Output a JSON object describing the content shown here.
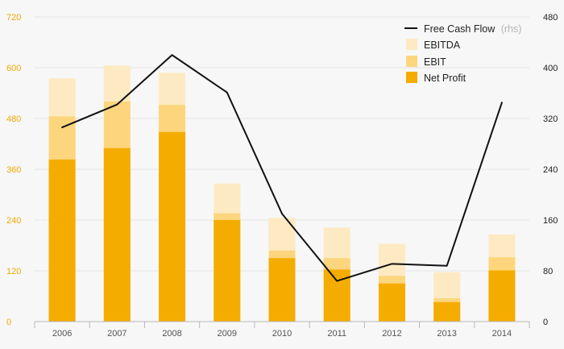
{
  "chart_data": {
    "type": "bar",
    "stacked": true,
    "categories": [
      "2006",
      "2007",
      "2008",
      "2009",
      "2010",
      "2011",
      "2012",
      "2013",
      "2014"
    ],
    "left_axis": {
      "ticks": [
        "0",
        "120",
        "240",
        "360",
        "480",
        "600",
        "720"
      ],
      "ylim": [
        0,
        720
      ],
      "tick_color": "#f0a800"
    },
    "right_axis": {
      "ticks": [
        "0",
        "80",
        "160",
        "240",
        "320",
        "400",
        "480"
      ],
      "ylim": [
        0,
        480
      ]
    },
    "series": [
      {
        "name": "Net Profit",
        "color": "#f5ac00",
        "values": [
          383,
          410,
          448,
          240,
          150,
          123,
          90,
          46,
          121
        ]
      },
      {
        "name": "EBIT",
        "color": "#fcd57d",
        "values": [
          485,
          520,
          512,
          256,
          168,
          150,
          108,
          55,
          152
        ]
      },
      {
        "name": "EBITDA",
        "color": "#fdeac2",
        "values": [
          575,
          605,
          588,
          326,
          245,
          222,
          184,
          117,
          206
        ]
      }
    ],
    "line": {
      "name": "Free Cash Flow",
      "suffix": "(rhs)",
      "color": "#111111",
      "axis": "right",
      "values": [
        306,
        342,
        420,
        361,
        170,
        64,
        91,
        88,
        345
      ]
    },
    "legend": {
      "position": "top-right",
      "order": [
        "Free Cash Flow",
        "EBITDA",
        "EBIT",
        "Net Profit"
      ]
    },
    "grid": true,
    "colors": {
      "background": "#f7f7f7",
      "grid": "#e4e4e4",
      "axis": "#b9b9b9"
    }
  }
}
